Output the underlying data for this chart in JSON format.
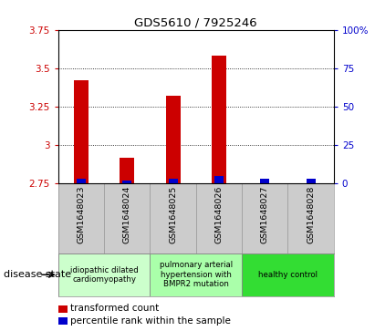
{
  "title": "GDS5610 / 7925246",
  "samples": [
    "GSM1648023",
    "GSM1648024",
    "GSM1648025",
    "GSM1648026",
    "GSM1648027",
    "GSM1648028"
  ],
  "red_values": [
    3.42,
    2.92,
    3.32,
    3.58,
    2.75,
    2.75
  ],
  "blue_values": [
    3,
    2,
    3,
    5,
    3,
    3
  ],
  "ylim_left": [
    2.75,
    3.75
  ],
  "ylim_right": [
    0,
    100
  ],
  "yticks_left": [
    2.75,
    3.0,
    3.25,
    3.5,
    3.75
  ],
  "yticks_right": [
    0,
    25,
    50,
    75,
    100
  ],
  "ytick_labels_left": [
    "2.75",
    "3",
    "3.25",
    "3.5",
    "3.75"
  ],
  "ytick_labels_right": [
    "0",
    "25",
    "50",
    "75",
    "100%"
  ],
  "red_color": "#cc0000",
  "blue_color": "#0000cc",
  "base_value": 2.75,
  "disease_groups": [
    {
      "label": "idiopathic dilated\ncardiomyopathy",
      "indices": [
        0,
        1
      ],
      "color": "#ccffcc"
    },
    {
      "label": "pulmonary arterial\nhypertension with\nBMPR2 mutation",
      "indices": [
        2,
        3
      ],
      "color": "#aaffaa"
    },
    {
      "label": "healthy control",
      "indices": [
        4,
        5
      ],
      "color": "#33dd33"
    }
  ],
  "xlabel_disease": "disease state",
  "legend_red": "transformed count",
  "legend_blue": "percentile rank within the sample",
  "tick_label_color_left": "#cc0000",
  "tick_label_color_right": "#0000cc",
  "sample_bg_color": "#cccccc",
  "fig_width": 4.11,
  "fig_height": 3.63,
  "dpi": 100
}
